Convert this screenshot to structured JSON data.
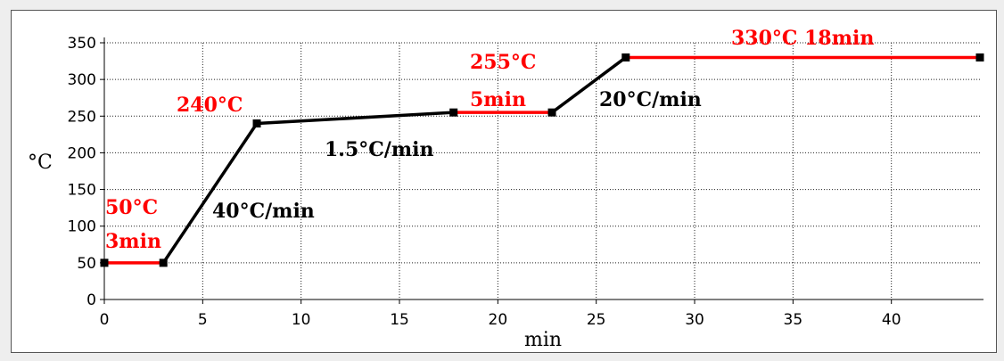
{
  "chart_data": {
    "type": "line",
    "xlabel": "min",
    "ylabel": "°C",
    "xlim": [
      0,
      44.5
    ],
    "ylim": [
      0,
      350
    ],
    "x_ticks": [
      0,
      5,
      10,
      15,
      20,
      25,
      30,
      35,
      40
    ],
    "y_ticks": [
      0,
      50,
      100,
      150,
      200,
      250,
      300,
      350
    ],
    "grid": true,
    "series": [
      {
        "points": [
          {
            "x": 0,
            "y": 50
          },
          {
            "x": 3,
            "y": 50
          },
          {
            "x": 7.75,
            "y": 240
          },
          {
            "x": 17.75,
            "y": 255
          },
          {
            "x": 22.75,
            "y": 255
          },
          {
            "x": 26.5,
            "y": 330
          },
          {
            "x": 44.5,
            "y": 330
          }
        ]
      }
    ],
    "segment_colors": [
      "#ff0000",
      "#000000",
      "#000000",
      "#ff0000",
      "#000000",
      "#ff0000"
    ],
    "annotations": [
      {
        "text": "50°C",
        "color": "#ff0000"
      },
      {
        "text": "3min",
        "color": "#ff0000"
      },
      {
        "text": "40°C/min",
        "color": "#000000"
      },
      {
        "text": "240°C",
        "color": "#ff0000"
      },
      {
        "text": "1.5°C/min",
        "color": "#000000"
      },
      {
        "text": "255°C",
        "color": "#ff0000"
      },
      {
        "text": "5min",
        "color": "#ff0000"
      },
      {
        "text": "20°C/min",
        "color": "#000000"
      },
      {
        "text": "330°C 18min",
        "color": "#ff0000"
      }
    ]
  }
}
